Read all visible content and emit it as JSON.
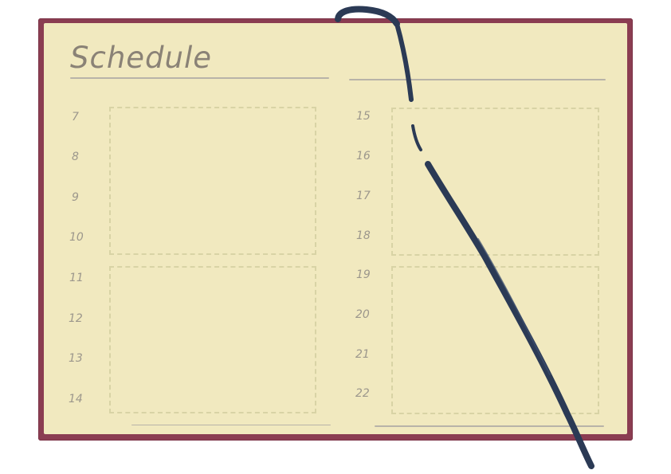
{
  "planner": {
    "title": "Schedule",
    "left_page": {
      "hours": [
        "7",
        "8",
        "9",
        "10",
        "11",
        "12",
        "13",
        "14"
      ]
    },
    "right_page": {
      "hours": [
        "15",
        "16",
        "17",
        "18",
        "19",
        "20",
        "21",
        "22"
      ]
    }
  },
  "colors": {
    "cover": "#8b3d52",
    "paper": "#f1e9bf",
    "ribbon": "#2b3a55",
    "slot_border": "#d8d3a5",
    "text": "#8a8276"
  }
}
